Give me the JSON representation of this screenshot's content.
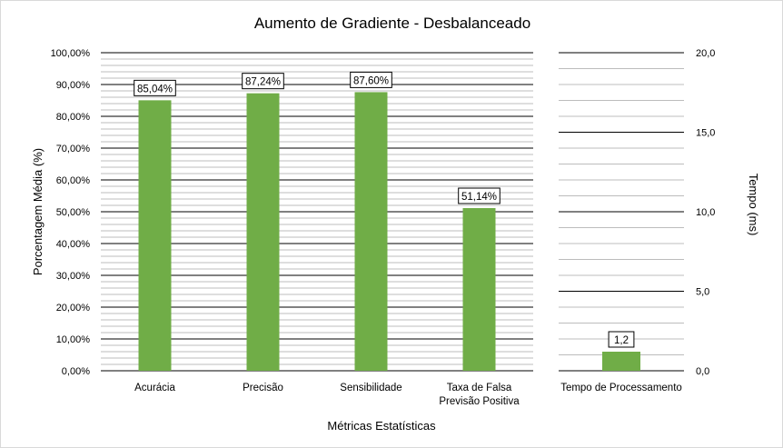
{
  "chart_data": [
    {
      "type": "bar",
      "title": "Aumento de Gradiente - Desbalanceado",
      "xlabel": "Métricas Estatísticas",
      "ylabel": "Porcentagem Média (%)",
      "ylim": [
        0,
        100
      ],
      "yticks": [
        "0,00%",
        "10,00%",
        "20,00%",
        "30,00%",
        "40,00%",
        "50,00%",
        "60,00%",
        "70,00%",
        "80,00%",
        "90,00%",
        "100,00%"
      ],
      "categories": [
        [
          "Acurácia"
        ],
        [
          "Precisão"
        ],
        [
          "Sensibilidade"
        ],
        [
          "Taxa de Falsa",
          "Previsão Positiva"
        ]
      ],
      "values": [
        85.04,
        87.24,
        87.6,
        51.14
      ],
      "data_labels": [
        "85,04%",
        "87,24%",
        "87,60%",
        "51,14%"
      ],
      "bar_color": "#70ad47",
      "grid": true
    },
    {
      "type": "bar",
      "ylabel": "Tempo (ms)",
      "ylim": [
        0,
        20
      ],
      "yticks": [
        "0,0",
        "5,0",
        "10,0",
        "15,0",
        "20,0"
      ],
      "categories": [
        [
          "Tempo de Processamento"
        ]
      ],
      "values": [
        1.2
      ],
      "data_labels": [
        "1,2"
      ],
      "bar_color": "#70ad47",
      "grid": true,
      "axis_side": "right"
    }
  ]
}
